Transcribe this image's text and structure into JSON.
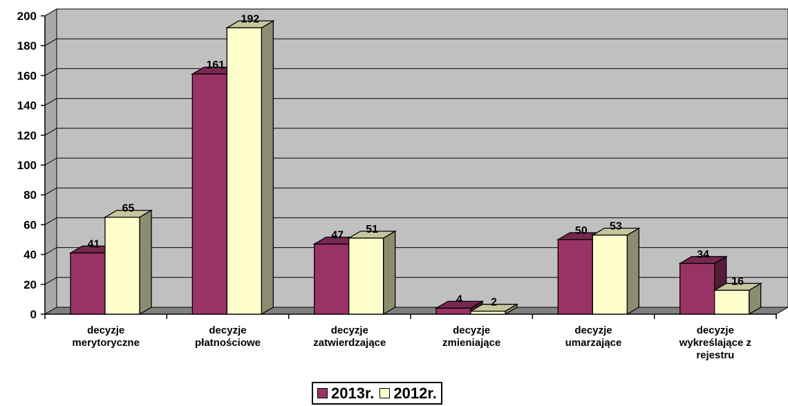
{
  "chart_data": {
    "type": "bar",
    "categories": [
      "decyzje merytoryczne",
      "decyzje płatnościowe",
      "decyzje zatwierdzające",
      "decyzje zmieniające",
      "decyzje umarzające",
      "decyzje wykreślające z rejestru"
    ],
    "category_lines": [
      [
        "decyzje",
        "merytoryczne"
      ],
      [
        "decyzje",
        "płatnościowe"
      ],
      [
        "decyzje",
        "zatwierdzające"
      ],
      [
        "decyzje",
        "zmieniające"
      ],
      [
        "decyzje",
        "umarzające"
      ],
      [
        "decyzje",
        "wykreślające z",
        "rejestru"
      ]
    ],
    "series": [
      {
        "name": "2013r.",
        "values": [
          41,
          161,
          47,
          4,
          50,
          34
        ],
        "color": "#993366"
      },
      {
        "name": "2012r.",
        "values": [
          65,
          192,
          51,
          2,
          53,
          16
        ],
        "color": "#FFFFCC"
      }
    ],
    "ylim": [
      0,
      200
    ],
    "yticks": [
      0,
      20,
      40,
      60,
      80,
      100,
      120,
      140,
      160,
      180,
      200
    ],
    "title": "",
    "xlabel": "",
    "ylabel": "",
    "grid": true,
    "legend_position": "bottom",
    "colors": {
      "plot_background": "#C0C0C0",
      "floor": "#808080",
      "grid": "#000000"
    }
  }
}
